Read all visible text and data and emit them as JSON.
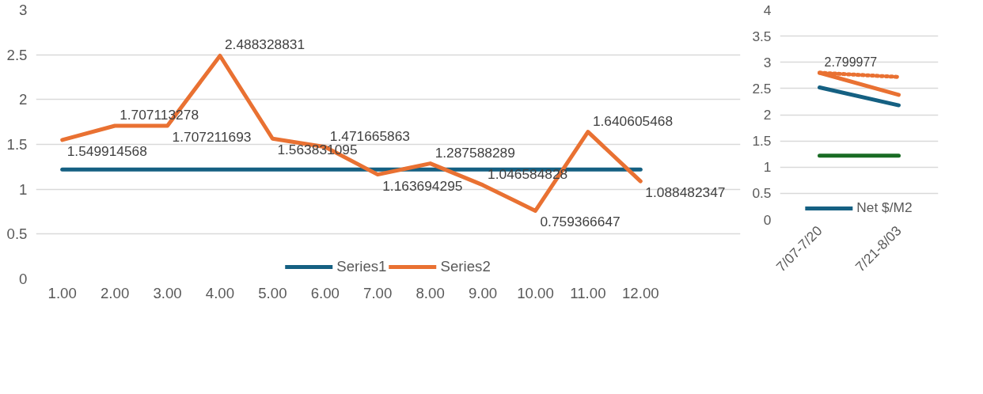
{
  "chart_data": [
    {
      "type": "line",
      "categories": [
        "1.00",
        "2.00",
        "3.00",
        "4.00",
        "5.00",
        "6.00",
        "7.00",
        "8.00",
        "9.00",
        "10.00",
        "11.00",
        "12.00"
      ],
      "ylim": [
        0,
        3
      ],
      "yticks": [
        0,
        0.5,
        1,
        1.5,
        2,
        2.5,
        3
      ],
      "grid": "y",
      "legend": "bottom",
      "line_style": "solid",
      "marker": "none",
      "series": [
        {
          "name": "Series1",
          "color": "#156082",
          "values": [
            1.22,
            1.22,
            1.22,
            1.22,
            1.22,
            1.22,
            1.22,
            1.22,
            1.22,
            1.22,
            1.22,
            1.22
          ]
        },
        {
          "name": "Series2",
          "color": "#e97132",
          "values": [
            1.549914568,
            1.707113278,
            1.707211693,
            2.488328831,
            1.563831095,
            1.471665863,
            1.163694295,
            1.287588289,
            1.046584828,
            0.759366647,
            1.640605468,
            1.088482347
          ],
          "value_labels": [
            "1.549914568",
            "1.707113278",
            "1.707211693",
            "2.488328831",
            "1.563831095",
            "1.471665863",
            "1.163694295",
            "1.287588289",
            "1.046584828",
            "0.759366647",
            "1.640605468",
            "1.088482347"
          ]
        }
      ]
    },
    {
      "type": "line",
      "categories": [
        "7/07-7/20",
        "7/21-8/03"
      ],
      "ylim": [
        0,
        4
      ],
      "yticks": [
        0,
        0.5,
        1,
        1.5,
        2,
        2.5,
        3,
        3.5,
        4
      ],
      "grid": "y",
      "legend": "bottom",
      "marker": "none",
      "series": [
        {
          "name": "Net $/M2",
          "color": "#156082",
          "values": [
            2.52,
            2.18
          ]
        },
        {
          "color": "#e97132",
          "values": [
            2.8,
            2.38
          ]
        },
        {
          "color": "#e97132",
          "line_style": "dotted",
          "values": [
            2.799977,
            2.72
          ],
          "value_labels": [
            "2.799977",
            null
          ]
        },
        {
          "color": "#196b24",
          "values": [
            1.22,
            1.22
          ]
        }
      ]
    }
  ]
}
